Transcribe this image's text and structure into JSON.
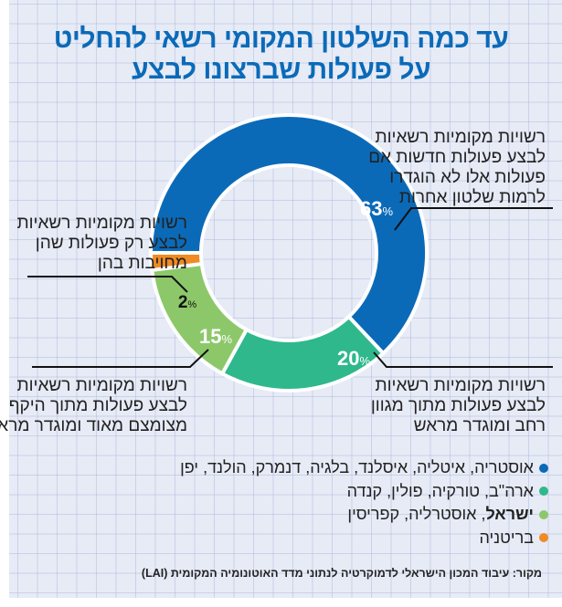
{
  "title": {
    "line1": "עד כמה השלטון המקומי רשאי להחליט",
    "line2": "על פעולות שברצונו לבצע"
  },
  "chart_data": {
    "type": "pie",
    "variant": "donut",
    "title": "עד כמה השלטון המקומי רשאי להחליט על פעולות שברצונו לבצע",
    "unit": "%",
    "start_position": "9 o'clock, clockwise",
    "slices": [
      {
        "key": "blue",
        "value": 63,
        "value_label": "63",
        "color": "#0b6ab8",
        "value_text_color": "#ffffff",
        "description": [
          "רשויות מקומיות רשאיות",
          "לבצע פעולות חדשות אם",
          "פעולות אלו לא הוגדרו",
          "לרמות שלטון אחרות"
        ]
      },
      {
        "key": "teal",
        "value": 20,
        "value_label": "20",
        "color": "#2fb88c",
        "value_text_color": "#ffffff",
        "description": [
          "רשויות מקומיות רשאיות",
          "לבצע פעולות מתוך מגוון",
          "רחב ומוגדר מראש"
        ]
      },
      {
        "key": "green",
        "value": 15,
        "value_label": "15",
        "color": "#8cc86a",
        "value_text_color": "#ffffff",
        "description": [
          "רשויות מקומיות רשאיות",
          "לבצע פעולות מתוך היקף",
          "מצומצם מאוד ומוגדר מראש"
        ]
      },
      {
        "key": "orange",
        "value": 2,
        "value_label": "2",
        "color": "#f08a24",
        "value_text_color": "#111111",
        "description": [
          "רשויות מקומיות רשאיות",
          "לבצע רק פעולות שהן",
          "מחויבות בהן"
        ]
      }
    ],
    "legend": [
      {
        "color": "#0b6ab8",
        "bold": "",
        "text": "אוסטריה, איטליה, איסלנד, בלגיה, דנמרק, הולנד, יפן"
      },
      {
        "color": "#2fb88c",
        "bold": "",
        "text": "ארה\"ב, טורקיה, פולין, קנדה"
      },
      {
        "color": "#8cc86a",
        "bold": "ישראל",
        "text": ", אוסטרליה, קפריסין"
      },
      {
        "color": "#f08a24",
        "bold": "",
        "text": "בריטניה"
      }
    ]
  },
  "source": "מקור: עיבוד המכון הישראלי לדמוקרטיה לנתוני מדד האוטונומיה המקומית (LAI)",
  "percent_sign": "%"
}
